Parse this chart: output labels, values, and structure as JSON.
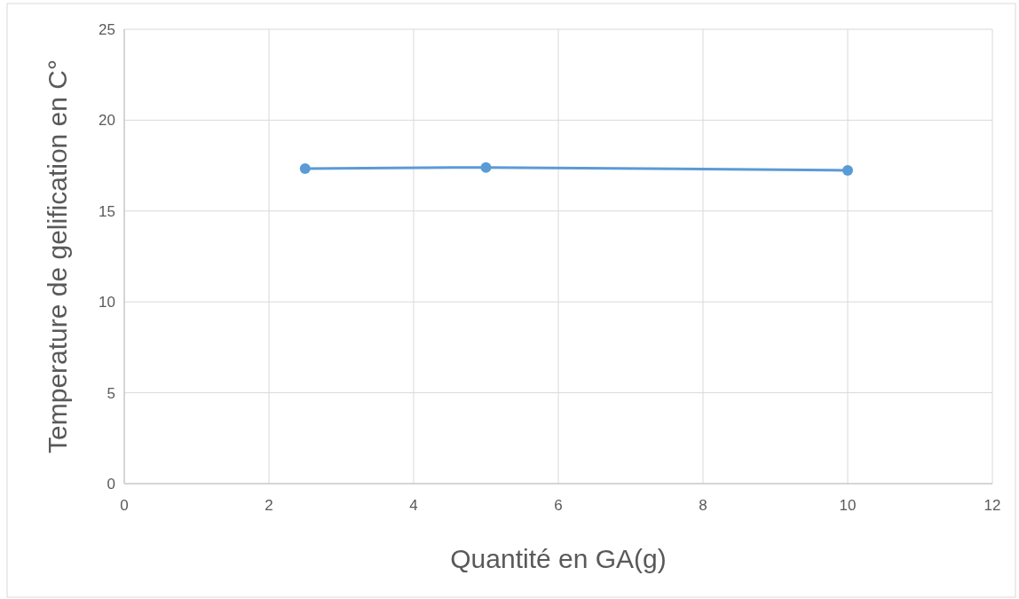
{
  "chart_data": {
    "type": "line",
    "xlabel": "Quantité en GA(g)",
    "ylabel": "Temperature de gelification en C°",
    "x": [
      2.5,
      5,
      10
    ],
    "series": [
      {
        "color": "#5b9bd5",
        "values": [
          17.33,
          17.4,
          17.24
        ]
      }
    ],
    "xlim": [
      0,
      12
    ],
    "xticks": [
      0,
      2,
      4,
      6,
      8,
      10,
      12
    ],
    "ylim": [
      0,
      25
    ],
    "yticks": [
      0,
      5,
      10,
      15,
      20,
      25
    ],
    "grid": true,
    "marker": "circle",
    "line_style": "solid"
  }
}
